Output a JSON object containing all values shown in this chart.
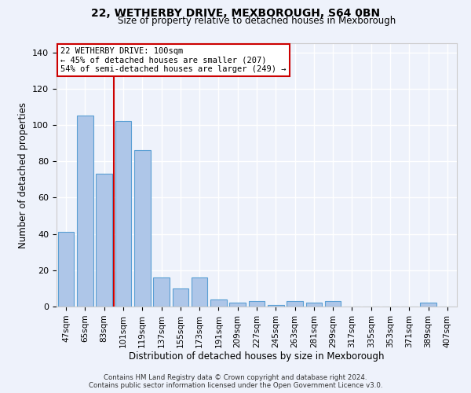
{
  "title": "22, WETHERBY DRIVE, MEXBOROUGH, S64 0BN",
  "subtitle": "Size of property relative to detached houses in Mexborough",
  "xlabel": "Distribution of detached houses by size in Mexborough",
  "ylabel": "Number of detached properties",
  "bar_color": "#aec6e8",
  "bar_edge_color": "#5a9fd4",
  "categories": [
    "47sqm",
    "65sqm",
    "83sqm",
    "101sqm",
    "119sqm",
    "137sqm",
    "155sqm",
    "173sqm",
    "191sqm",
    "209sqm",
    "227sqm",
    "245sqm",
    "263sqm",
    "281sqm",
    "299sqm",
    "317sqm",
    "335sqm",
    "353sqm",
    "371sqm",
    "389sqm",
    "407sqm"
  ],
  "values": [
    41,
    105,
    73,
    102,
    86,
    16,
    10,
    16,
    4,
    2,
    3,
    1,
    3,
    2,
    3,
    0,
    0,
    0,
    0,
    2,
    0
  ],
  "ylim": [
    0,
    145
  ],
  "yticks": [
    0,
    20,
    40,
    60,
    80,
    100,
    120,
    140
  ],
  "property_line_idx": 3,
  "property_line_color": "#cc0000",
  "annotation_text": "22 WETHERBY DRIVE: 100sqm\n← 45% of detached houses are smaller (207)\n54% of semi-detached houses are larger (249) →",
  "annotation_box_color": "#ffffff",
  "annotation_box_edge": "#cc0000",
  "footer_line1": "Contains HM Land Registry data © Crown copyright and database right 2024.",
  "footer_line2": "Contains public sector information licensed under the Open Government Licence v3.0.",
  "background_color": "#eef2fb",
  "grid_color": "#ffffff"
}
